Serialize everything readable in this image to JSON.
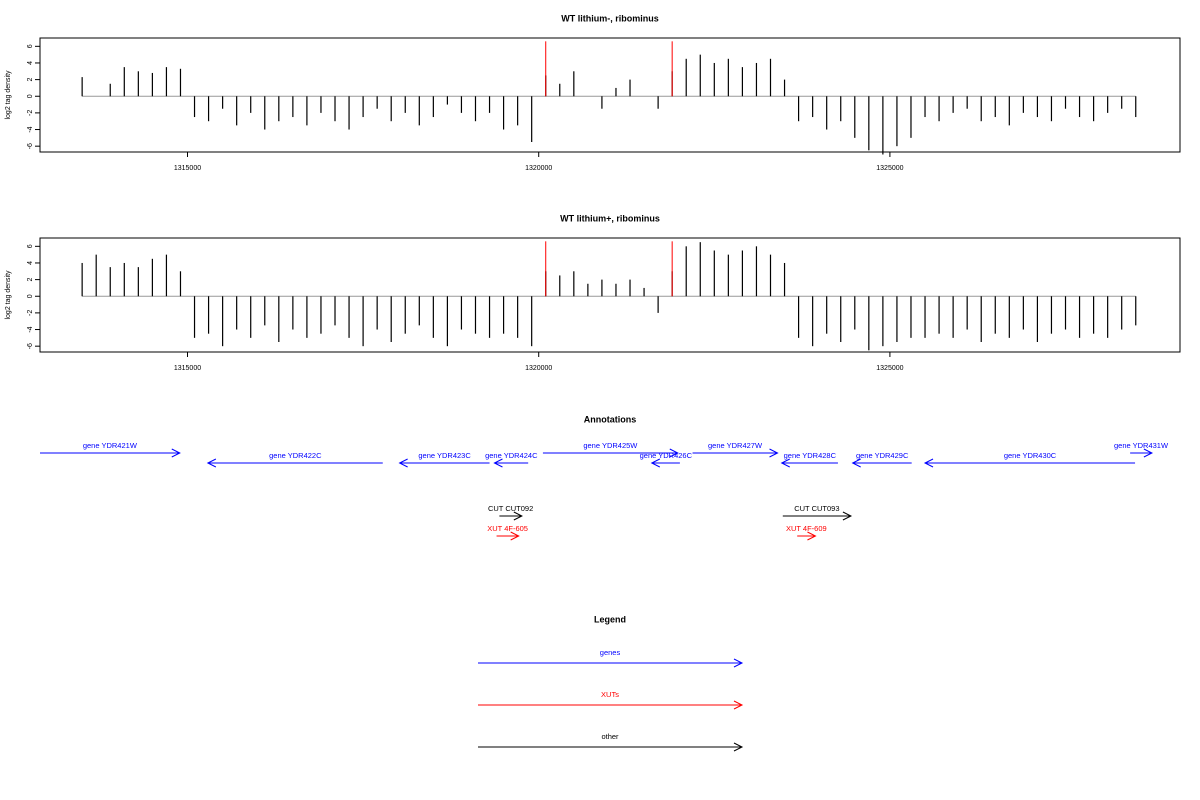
{
  "chart_data": [
    {
      "type": "bar",
      "title": "WT lithium-, ribominus",
      "y_label": "log2 tag density",
      "x": [
        1313500,
        1313700,
        1313900,
        1314100,
        1314300,
        1314500,
        1314700,
        1314900,
        1315100,
        1315300,
        1315500,
        1315700,
        1315900,
        1316100,
        1316300,
        1316500,
        1316700,
        1316900,
        1317100,
        1317300,
        1317500,
        1317700,
        1317900,
        1318100,
        1318300,
        1318500,
        1318700,
        1318900,
        1319100,
        1319300,
        1319500,
        1319700,
        1319900,
        1320100,
        1320300,
        1320500,
        1320700,
        1320900,
        1321100,
        1321300,
        1321500,
        1321700,
        1321900,
        1322100,
        1322300,
        1322500,
        1322700,
        1322900,
        1323100,
        1323300,
        1323500,
        1323700,
        1323900,
        1324100,
        1324300,
        1324500,
        1324700,
        1324900,
        1325100,
        1325300,
        1325500,
        1325700,
        1325900,
        1326100,
        1326300,
        1326500,
        1326700,
        1326900,
        1327100,
        1327300,
        1327500,
        1327700,
        1327900,
        1328100,
        1328300,
        1328500
      ],
      "values": [
        2.3,
        0,
        1.5,
        3.5,
        3,
        2.8,
        3.5,
        3.3,
        -2.5,
        -3,
        -1.5,
        -3.5,
        -2,
        -4,
        -3,
        -2.5,
        -3.5,
        -2,
        -3,
        -4,
        -2.5,
        -1.5,
        -3,
        -2,
        -3.5,
        -2.5,
        -1,
        -2,
        -3,
        -2,
        -4,
        -3.5,
        -5.5,
        2.5,
        1.5,
        3,
        0,
        -1.5,
        1,
        2,
        0,
        -1.5,
        3,
        4.5,
        5,
        4,
        4.5,
        3.5,
        4,
        4.5,
        2,
        -3,
        -2.5,
        -4,
        -3,
        -5,
        -6.5,
        -7,
        -6,
        -5,
        -2.5,
        -3,
        -2,
        -1.5,
        -3,
        -2.5,
        -3.5,
        -2,
        -2.5,
        -3,
        -1.5,
        -2.5,
        -3,
        -2,
        -1.5,
        -2.5
      ],
      "color": "#000000",
      "markers": {
        "x": [
          1320100,
          1321900
        ],
        "values": [
          6.6,
          6.6
        ],
        "color": "#ff0000"
      },
      "xlim": [
        1312900,
        1329130
      ],
      "xticks": [
        1315000,
        1320000,
        1325000
      ],
      "ylim": [
        -6.7,
        7
      ],
      "yticks": [
        -6,
        -4,
        -2,
        0,
        2,
        4,
        6
      ]
    },
    {
      "type": "bar",
      "title": "WT lithium+, ribominus",
      "y_label": "log2 tag density",
      "x": [
        1313500,
        1313700,
        1313900,
        1314100,
        1314300,
        1314500,
        1314700,
        1314900,
        1315100,
        1315300,
        1315500,
        1315700,
        1315900,
        1316100,
        1316300,
        1316500,
        1316700,
        1316900,
        1317100,
        1317300,
        1317500,
        1317700,
        1317900,
        1318100,
        1318300,
        1318500,
        1318700,
        1318900,
        1319100,
        1319300,
        1319500,
        1319700,
        1319900,
        1320100,
        1320300,
        1320500,
        1320700,
        1320900,
        1321100,
        1321300,
        1321500,
        1321700,
        1321900,
        1322100,
        1322300,
        1322500,
        1322700,
        1322900,
        1323100,
        1323300,
        1323500,
        1323700,
        1323900,
        1324100,
        1324300,
        1324500,
        1324700,
        1324900,
        1325100,
        1325300,
        1325500,
        1325700,
        1325900,
        1326100,
        1326300,
        1326500,
        1326700,
        1326900,
        1327100,
        1327300,
        1327500,
        1327700,
        1327900,
        1328100,
        1328300,
        1328500
      ],
      "values": [
        4,
        5,
        3.5,
        4,
        3.5,
        4.5,
        5,
        3,
        -5,
        -4.5,
        -6,
        -4,
        -5,
        -3.5,
        -5.5,
        -4,
        -5,
        -4.5,
        -3.5,
        -5,
        -6,
        -4,
        -5.5,
        -4.5,
        -3.5,
        -5,
        -6,
        -4,
        -4.5,
        -5,
        -4.5,
        -5,
        -6,
        3,
        2.5,
        3,
        1.5,
        2,
        1.5,
        2,
        1,
        -2,
        3,
        6,
        6.5,
        5.5,
        5,
        5.5,
        6,
        5,
        4,
        -5,
        -6,
        -4.5,
        -5.5,
        -4,
        -6.5,
        -6,
        -5.5,
        -5,
        -5,
        -4.5,
        -5,
        -4,
        -5.5,
        -4.5,
        -5,
        -4,
        -5.5,
        -4.5,
        -4,
        -5,
        -4.5,
        -5,
        -4,
        -3.5
      ],
      "color": "#000000",
      "markers": {
        "x": [
          1320100,
          1321900
        ],
        "values": [
          6.6,
          6.6
        ],
        "color": "#ff0000"
      },
      "xlim": [
        1312900,
        1329130
      ],
      "xticks": [
        1315000,
        1320000,
        1325000
      ],
      "ylim": [
        -6.7,
        7
      ],
      "yticks": [
        -6,
        -4,
        -2,
        0,
        2,
        4,
        6
      ]
    }
  ],
  "annotations": {
    "title": "Annotations",
    "genes": [
      {
        "label": "gene YDR421W",
        "start": 1312900,
        "end": 1314890,
        "direction": "right",
        "color": "#0000ff"
      },
      {
        "label": "gene YDR422C",
        "start": 1315290,
        "end": 1317780,
        "direction": "left",
        "color": "#0000ff"
      },
      {
        "label": "gene YDR423C",
        "start": 1318020,
        "end": 1319300,
        "direction": "left",
        "color": "#0000ff"
      },
      {
        "label": "gene YDR424C",
        "start": 1319370,
        "end": 1319850,
        "direction": "left",
        "color": "#0000ff"
      },
      {
        "label": "gene YDR425W",
        "start": 1320060,
        "end": 1321980,
        "direction": "right",
        "color": "#0000ff"
      },
      {
        "label": "gene YDR426C",
        "start": 1321610,
        "end": 1322010,
        "direction": "left",
        "color": "#0000ff"
      },
      {
        "label": "gene YDR427W",
        "start": 1322190,
        "end": 1323400,
        "direction": "right",
        "color": "#0000ff"
      },
      {
        "label": "gene YDR428C",
        "start": 1323460,
        "end": 1324260,
        "direction": "left",
        "color": "#0000ff"
      },
      {
        "label": "gene YDR429C",
        "start": 1324470,
        "end": 1325310,
        "direction": "left",
        "color": "#0000ff"
      },
      {
        "label": "gene YDR430C",
        "start": 1325500,
        "end": 1328490,
        "direction": "left",
        "color": "#0000ff"
      },
      {
        "label": "gene YDR431W",
        "start": 1328420,
        "end": 1328730,
        "direction": "right",
        "color": "#0000ff"
      }
    ],
    "cuts": [
      {
        "label": "CUT CUT092",
        "start": 1319440,
        "end": 1319760,
        "direction": "right",
        "color": "#000000"
      },
      {
        "label": "CUT CUT093",
        "start": 1323475,
        "end": 1324445,
        "direction": "right",
        "color": "#000000"
      }
    ],
    "xuts": [
      {
        "label": "XUT 4F-605",
        "start": 1319400,
        "end": 1319715,
        "direction": "right",
        "color": "#ff0000"
      },
      {
        "label": "XUT 4F-609",
        "start": 1323680,
        "end": 1323940,
        "direction": "right",
        "color": "#ff0000"
      }
    ]
  },
  "legend": {
    "title": "Legend",
    "items": [
      {
        "label": "genes",
        "color": "#0000ff"
      },
      {
        "label": "XUTs",
        "color": "#ff0000"
      },
      {
        "label": "other",
        "color": "#000000"
      }
    ]
  }
}
